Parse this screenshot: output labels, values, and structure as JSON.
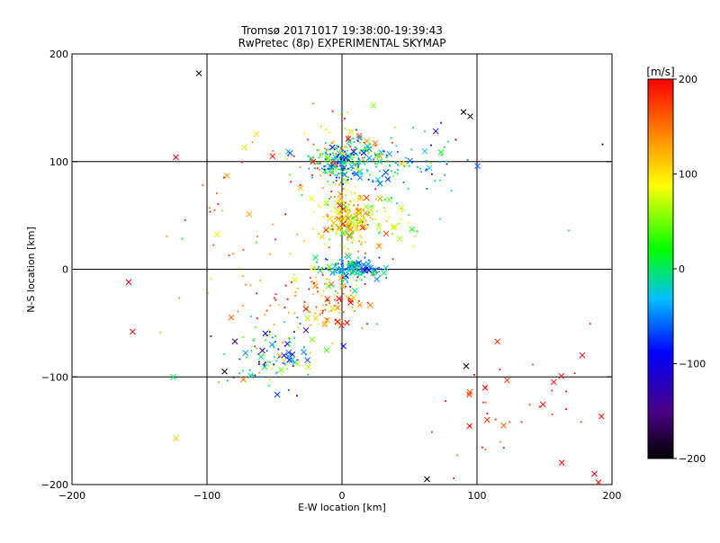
{
  "chart_data": {
    "type": "scatter",
    "title": "Tromsø 20171017 19:38:00-19:39:43",
    "subtitle": "RwPretec (8p) EXPERIMENTAL SKYMAP",
    "xlabel": "E-W location [km]",
    "ylabel": "N-S location [km]",
    "xlim": [
      -200,
      200
    ],
    "ylim": [
      -200,
      200
    ],
    "x_ticks": [
      -200,
      -100,
      0,
      100,
      200
    ],
    "y_ticks": [
      -200,
      -100,
      0,
      100,
      200
    ],
    "grid_lines_x": [
      -100,
      0,
      100
    ],
    "grid_lines_y": [
      -100,
      0,
      100
    ],
    "colorbar": {
      "label": "[m/s]",
      "range": [
        -200,
        200
      ],
      "ticks": [
        -200,
        -100,
        0,
        100,
        200
      ],
      "colormap": [
        "#000000",
        "#4b0082",
        "#0000ff",
        "#00bfff",
        "#00ff00",
        "#ffff00",
        "#ff8000",
        "#ff0000"
      ]
    },
    "markers": {
      "small": "dot",
      "large": "x"
    },
    "clusters": [
      {
        "x": 2,
        "y": 100,
        "sx": 12,
        "sy": 8,
        "n": 220,
        "vmean": -20,
        "vsd": 45
      },
      {
        "x": 4,
        "y": 48,
        "sx": 10,
        "sy": 12,
        "n": 200,
        "vmean": 110,
        "vsd": 40
      },
      {
        "x": 8,
        "y": 0,
        "sx": 12,
        "sy": 5,
        "n": 150,
        "vmean": -30,
        "vsd": 40
      },
      {
        "x": -10,
        "y": -30,
        "sx": 18,
        "sy": 15,
        "n": 120,
        "vmean": 140,
        "vsd": 70
      },
      {
        "x": -50,
        "y": -80,
        "sx": 15,
        "sy": 15,
        "n": 110,
        "vmean": -20,
        "vsd": 80
      },
      {
        "x": -10,
        "y": 110,
        "sx": 25,
        "sy": 20,
        "n": 80,
        "vmean": 130,
        "vsd": 60
      },
      {
        "x": 40,
        "y": 100,
        "sx": 30,
        "sy": 15,
        "n": 90,
        "vmean": -40,
        "vsd": 40
      },
      {
        "x": 30,
        "y": 50,
        "sx": 20,
        "sy": 15,
        "n": 60,
        "vmean": 60,
        "vsd": 40
      },
      {
        "x": 130,
        "y": -120,
        "sx": 40,
        "sy": 40,
        "n": 40,
        "vmean": 190,
        "vsd": 20
      },
      {
        "x": -70,
        "y": 30,
        "sx": 35,
        "sy": 50,
        "n": 60,
        "vmean": 130,
        "vsd": 60
      }
    ],
    "notable_points": [
      {
        "x": -106,
        "y": 182,
        "v": -200,
        "m": "x"
      },
      {
        "x": 90,
        "y": 146,
        "v": -200,
        "m": "x"
      },
      {
        "x": 95,
        "y": 142,
        "v": -200,
        "m": "x"
      },
      {
        "x": 63,
        "y": -195,
        "v": -200,
        "m": "x"
      },
      {
        "x": -123,
        "y": 104,
        "v": 200,
        "m": "x"
      },
      {
        "x": -158,
        "y": -12,
        "v": 200,
        "m": "x"
      },
      {
        "x": -155,
        "y": -58,
        "v": 200,
        "m": "x"
      },
      {
        "x": -123,
        "y": -157,
        "v": 110,
        "m": "x"
      },
      {
        "x": -125,
        "y": -100,
        "v": 10,
        "m": "x"
      },
      {
        "x": -87,
        "y": -95,
        "v": -200,
        "m": "x"
      },
      {
        "x": 92,
        "y": -90,
        "v": -200,
        "m": "x"
      },
      {
        "x": 178,
        "y": -80,
        "v": 200,
        "m": "x"
      },
      {
        "x": 187,
        "y": -190,
        "v": 200,
        "m": "x"
      },
      {
        "x": 190,
        "y": -198,
        "v": 200,
        "m": "x"
      },
      {
        "x": 106,
        "y": -110,
        "v": 200,
        "m": "x"
      },
      {
        "x": 168,
        "y": 36,
        "v": -20,
        "m": "dot"
      },
      {
        "x": 193,
        "y": 116,
        "v": -200,
        "m": "dot"
      },
      {
        "x": 98,
        "y": -98,
        "v": 200,
        "m": "dot"
      }
    ]
  }
}
